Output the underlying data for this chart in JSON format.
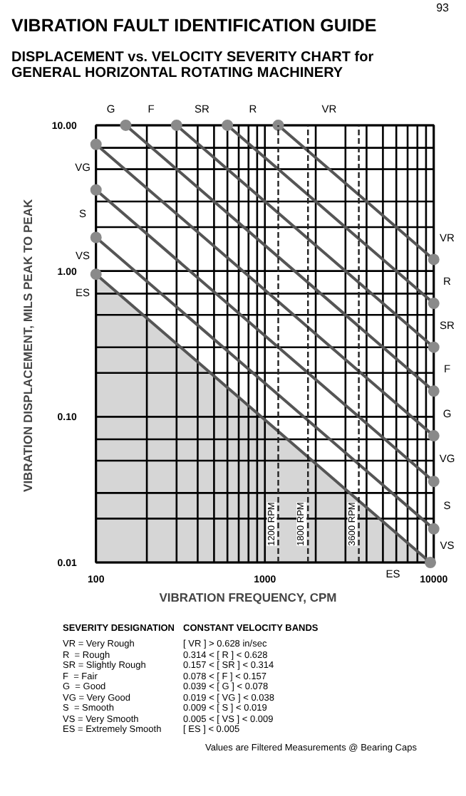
{
  "chart_data": {
    "type": "line",
    "title": "VIBRATION FAULT IDENTIFICATION GUIDE",
    "subtitle": "DISPLACEMENT vs. VELOCITY SEVERITY CHART for GENERAL HORIZONTAL ROTATING MACHINERY",
    "xlabel": "VIBRATION FREQUENCY, CPM",
    "ylabel": "VIBRATION DISPLACEMENT,  MILS PEAK TO PEAK",
    "log": "xy",
    "grid": true,
    "marker": "circle",
    "line_style": "solid",
    "xlim": [
      100,
      10000
    ],
    "ylim": [
      0.01,
      10
    ],
    "xticks": [
      100,
      {
        "value": 200,
        "label": null
      },
      {
        "value": 300,
        "label": null
      },
      {
        "value": 400,
        "label": null
      },
      {
        "value": 500,
        "label": null
      },
      {
        "value": 600,
        "label": null
      },
      {
        "value": 700,
        "label": null
      },
      {
        "value": 800,
        "label": null
      },
      {
        "value": 900,
        "label": null
      },
      1000,
      {
        "value": 2000,
        "label": null
      },
      {
        "value": 3000,
        "label": null
      },
      {
        "value": 4000,
        "label": null
      },
      {
        "value": 5000,
        "label": null
      },
      {
        "value": 6000,
        "label": null
      },
      {
        "value": 7000,
        "label": null
      },
      {
        "value": 8000,
        "label": null
      },
      {
        "value": 9000,
        "label": null
      },
      10000
    ],
    "yticks": [
      {
        "value": 0.01,
        "label": "0.01"
      },
      {
        "value": 0.02,
        "label": null
      },
      {
        "value": 0.03,
        "label": null
      },
      {
        "value": 0.05,
        "label": null
      },
      {
        "value": 0.07,
        "label": null
      },
      {
        "value": 0.1,
        "label": "0.10"
      },
      {
        "value": 0.2,
        "label": null
      },
      {
        "value": 0.3,
        "label": null
      },
      {
        "value": 0.5,
        "label": null
      },
      {
        "value": 0.7,
        "label": null
      },
      {
        "value": 1,
        "label": "1.00"
      },
      {
        "value": 2,
        "label": null
      },
      {
        "value": 3,
        "label": null
      },
      {
        "value": 5,
        "label": null
      },
      {
        "value": 7,
        "label": null
      },
      {
        "value": 10,
        "label": "10.00"
      }
    ],
    "series": [
      {
        "color": "#555555",
        "x": [
          1200,
          10000
        ],
        "values": [
          10,
          1.2
        ]
      },
      {
        "color": "#555555",
        "x": [
          600,
          10000
        ],
        "values": [
          10,
          0.6
        ]
      },
      {
        "color": "#555555",
        "x": [
          300,
          10000
        ],
        "values": [
          10,
          0.3
        ]
      },
      {
        "color": "#555555",
        "x": [
          150,
          10000
        ],
        "values": [
          10,
          0.15
        ]
      },
      {
        "color": "#555555",
        "x": [
          100,
          10000
        ],
        "values": [
          7.4,
          0.074
        ]
      },
      {
        "color": "#555555",
        "x": [
          100,
          10000
        ],
        "values": [
          3.6,
          0.036
        ]
      },
      {
        "color": "#555555",
        "x": [
          100,
          10000
        ],
        "values": [
          1.7,
          0.017
        ]
      },
      {
        "type": "area",
        "color": "#555555",
        "x": [
          100,
          9550
        ],
        "values": [
          0.95,
          0.01
        ]
      }
    ],
    "ref_lines": [
      {
        "axis": "x",
        "value": 1200,
        "label": "1200 RPM",
        "line_style": "dashed",
        "color": "#222222"
      },
      {
        "axis": "x",
        "value": 1800,
        "label": "1800 RPM",
        "line_style": "dashed",
        "color": "#222222"
      },
      {
        "axis": "x",
        "value": 3600,
        "label": "3600 RPM",
        "line_style": "dashed",
        "color": "#222222"
      }
    ],
    "annotations": [
      "VR",
      "R",
      "SR",
      "F",
      "G",
      "VG",
      "S",
      "VS",
      "ES",
      "G",
      "F",
      "SR",
      "R",
      "VR",
      "VG",
      "S",
      "VS",
      "ES",
      "93",
      "SEVERITY DESIGNATION",
      "CONSTANT VELOCITY BANDS",
      "VR = Very Rough",
      "[ VR ] > 0.628 in/sec",
      "R  = Rough",
      "0.314 < [ R ] < 0.628",
      "SR = Slightly Rough",
      "0.157 < [ SR ] < 0.314",
      "F  = Fair",
      "0.078 < [ F ] < 0.157",
      "G  = Good",
      "0.039 < [ G ] < 0.078",
      "VG = Very Good",
      "0.019 < [ VG ] < 0.038",
      "S  = Smooth",
      "0.009 < [ S ] < 0.019",
      "VS = Very Smooth",
      "0.005 < [ VS ] < 0.009",
      "ES = Extremely Smooth",
      "[ ES ] < 0.005",
      "Values are Filtered Measurements @ Bearing Caps"
    ]
  }
}
